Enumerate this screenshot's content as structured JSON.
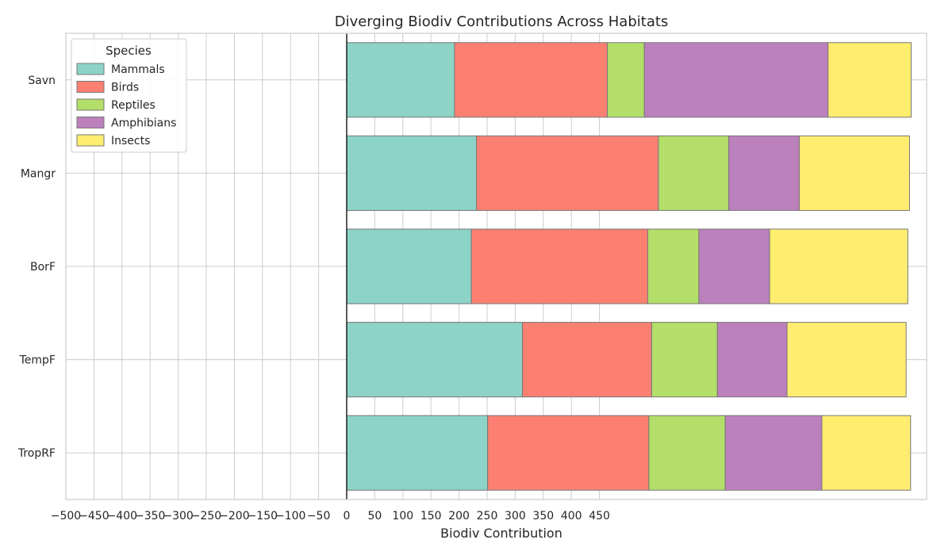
{
  "chart_data": {
    "type": "bar",
    "orientation": "horizontal",
    "stacked": true,
    "title": "Diverging Biodiv Contributions Across Habitats",
    "xlabel": "Biodiv Contribution",
    "ylabel": "",
    "xlim": [
      -500,
      1020
    ],
    "x_ticks": [
      -500,
      -450,
      -400,
      -350,
      -300,
      -250,
      -200,
      -150,
      -100,
      -50,
      0,
      50,
      100,
      150,
      200,
      250,
      300,
      350,
      400,
      450
    ],
    "grid": true,
    "categories": [
      "Savn",
      "Mangr",
      "BorF",
      "TempF",
      "TropRF"
    ],
    "legend": {
      "title": "Species",
      "placement": "top-left"
    },
    "series": [
      {
        "name": "Mammals",
        "color": "#8dd3c7",
        "values": [
          192,
          231,
          222,
          313,
          251
        ]
      },
      {
        "name": "Birds",
        "color": "#fb8072",
        "values": [
          272,
          324,
          314,
          230,
          287
        ]
      },
      {
        "name": "Reptiles",
        "color": "#b3de69",
        "values": [
          66,
          125,
          91,
          117,
          136
        ]
      },
      {
        "name": "Amphibians",
        "color": "#bc80bd",
        "values": [
          327,
          126,
          126,
          124,
          172
        ]
      },
      {
        "name": "Insects",
        "color": "#ffed6f",
        "values": [
          148,
          196,
          246,
          212,
          158
        ]
      }
    ]
  }
}
